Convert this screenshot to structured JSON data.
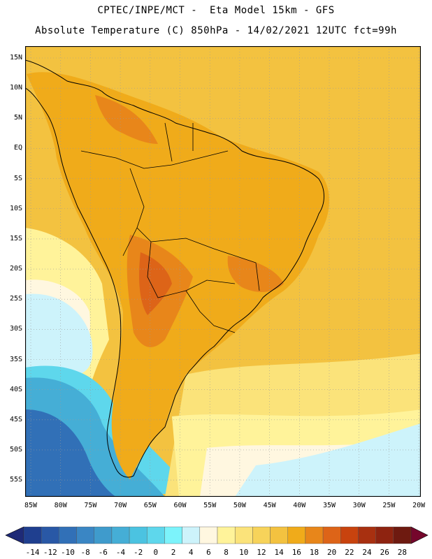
{
  "header": {
    "line1": "CPTEC/INPE/MCT -  Eta Model 15km - GFS",
    "line2": "Absolute Temperature (C) 850hPa - 14/02/2021 12UTC fct=99h"
  },
  "axes": {
    "lat_labels": [
      "15N",
      "10N",
      "5N",
      "EQ",
      "5S",
      "10S",
      "15S",
      "20S",
      "25S",
      "30S",
      "35S",
      "40S",
      "45S",
      "50S",
      "55S"
    ],
    "lon_labels": [
      "85W",
      "80W",
      "75W",
      "70W",
      "65W",
      "60W",
      "55W",
      "50W",
      "45W",
      "40W",
      "35W",
      "30W",
      "25W",
      "20W"
    ]
  },
  "colorbar": {
    "labels": [
      "-14",
      "-12",
      "-10",
      "-8",
      "-6",
      "-4",
      "-2",
      "0",
      "2",
      "4",
      "6",
      "8",
      "10",
      "12",
      "14",
      "16",
      "18",
      "20",
      "22",
      "24",
      "26",
      "28"
    ],
    "colors": [
      "#1f3f8f",
      "#2958a6",
      "#3170b7",
      "#3a86c4",
      "#3f9bcc",
      "#45aed6",
      "#4bc3e1",
      "#5ed7ec",
      "#7cf3fb",
      "#cdf3fb",
      "#fff7e0",
      "#fff39a",
      "#fbe37a",
      "#f7d35a",
      "#f3c240",
      "#f0ab1a",
      "#e8861a",
      "#dd6418",
      "#c8430e",
      "#a83010",
      "#8e2310",
      "#6e1a10"
    ],
    "left_arrow_color": "#1e2a77",
    "right_arrow_color": "#75062c"
  },
  "map": {
    "colors": {
      "sea_warm": "#f3c240",
      "continent": "#f0ab1a",
      "hot": "#e8861a",
      "hotter": "#dd6418",
      "cool_yellow": "#fbe37a",
      "pale": "#fff39a",
      "cream": "#fff7e0",
      "light_cyan": "#cdf3fb",
      "cyan": "#5ed7ec",
      "mid_blue": "#45aed6",
      "deep_blue": "#3170b7",
      "grid": "#9a9a9a",
      "coast": "#000000"
    }
  }
}
